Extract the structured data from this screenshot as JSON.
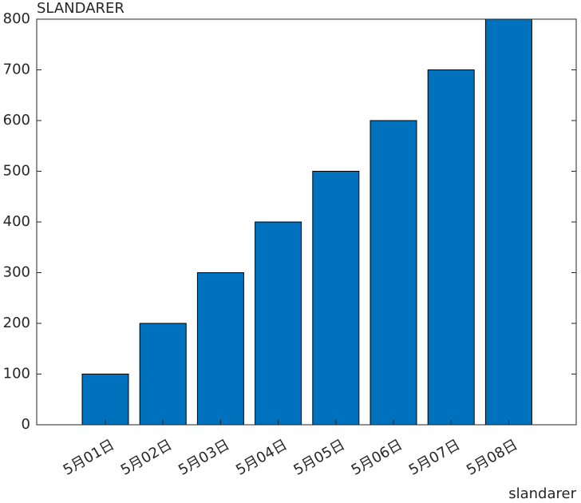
{
  "chart_data": {
    "type": "bar",
    "title": "SLANDARER",
    "x_label": "slandarer",
    "categories": [
      "5月01日",
      "5月02日",
      "5月03日",
      "5月04日",
      "5月05日",
      "5月06日",
      "5月07日",
      "5月08日"
    ],
    "values": [
      100,
      200,
      300,
      400,
      500,
      600,
      700,
      800
    ],
    "color": "#0072bd",
    "ylim": [
      0,
      800
    ],
    "yticks": [
      0,
      100,
      200,
      300,
      400,
      500,
      600,
      700,
      800
    ],
    "grid": false
  }
}
